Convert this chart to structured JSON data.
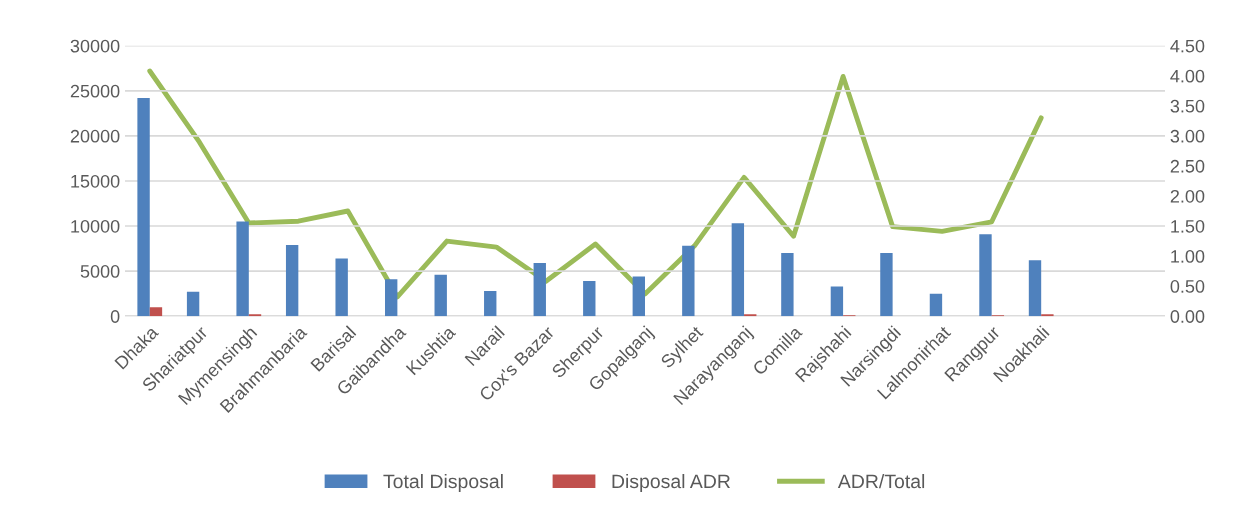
{
  "chart_data": {
    "type": "bar",
    "categories": [
      "Dhaka",
      "Shariatpur",
      "Mymensingh",
      "Brahmanbaria",
      "Barisal",
      "Gaibandha",
      "Kushtia",
      "Narail",
      "Cox's Bazar",
      "Sherpur",
      "Gopalganj",
      "Sylhet",
      "Narayanganj",
      "Comilla",
      "Rajshahi",
      "Narsingdi",
      "Lalmonirhat",
      "Rangpur",
      "Noakhali",
      null,
      null
    ],
    "series": [
      {
        "name": "Total Disposal",
        "color": "#4f81bd",
        "values": [
          24200,
          2700,
          10500,
          7900,
          6400,
          4100,
          4600,
          2800,
          5900,
          3900,
          4400,
          7800,
          10300,
          7000,
          3300,
          7000,
          2500,
          9100,
          6200,
          null,
          null
        ]
      },
      {
        "name": "Disposal ADR",
        "color": "#c0504d",
        "values": [
          1000,
          null,
          200,
          null,
          null,
          null,
          null,
          null,
          null,
          null,
          null,
          null,
          200,
          null,
          100,
          null,
          null,
          100,
          200,
          null,
          null
        ]
      },
      {
        "name": "ADR/Total",
        "type": "line",
        "axis": "y2",
        "color": "#9bbb59",
        "values": [
          4.08,
          2.9,
          1.55,
          1.58,
          1.75,
          0.32,
          1.25,
          1.15,
          0.58,
          1.2,
          0.37,
          1.17,
          2.31,
          1.33,
          3.99,
          1.49,
          1.41,
          1.57,
          3.3,
          null,
          null
        ]
      }
    ],
    "ylim": [
      0,
      30000
    ],
    "yticks": [
      0,
      5000,
      10000,
      15000,
      20000,
      25000,
      30000
    ],
    "y2lim": [
      0,
      4.5
    ],
    "y2ticks": [
      {
        "value": 0,
        "label": "0.00"
      },
      {
        "value": 0.5,
        "label": "0.50"
      },
      {
        "value": 1,
        "label": "1.00"
      },
      {
        "value": 1.5,
        "label": "1.50"
      },
      {
        "value": 2,
        "label": "2.00"
      },
      {
        "value": 2.5,
        "label": "2.50"
      },
      {
        "value": 3,
        "label": "3.00"
      },
      {
        "value": 3.5,
        "label": "3.50"
      },
      {
        "value": 4,
        "label": "4.00"
      },
      {
        "value": 4.5,
        "label": "4.50"
      }
    ],
    "grid": "y",
    "legend": "bottom",
    "marker": "none",
    "line_style": "solid"
  }
}
